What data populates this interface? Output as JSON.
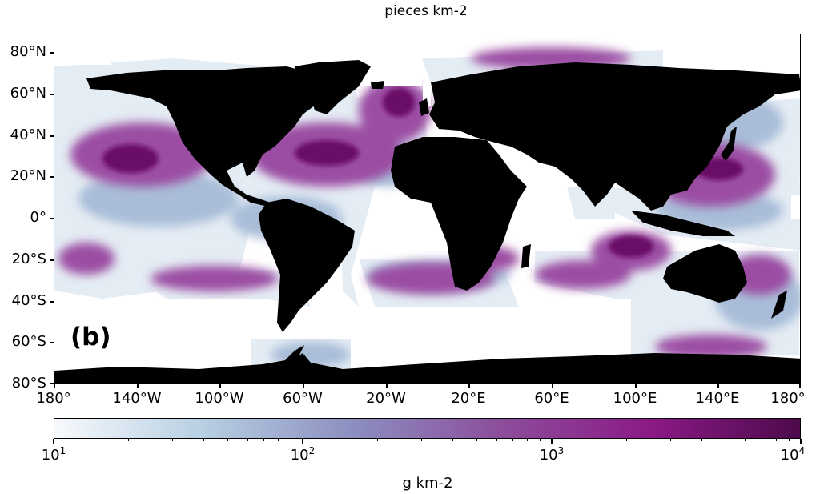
{
  "title": "pieces km-2",
  "panel_label": "(b)",
  "y_ticks": [
    "80°N",
    "60°N",
    "40°N",
    "20°N",
    "0°",
    "20°S",
    "40°S",
    "60°S",
    "80°S"
  ],
  "x_ticks": [
    "180°",
    "140°W",
    "100°W",
    "60°W",
    "20°W",
    "20°E",
    "60°E",
    "100°E",
    "140°E",
    "180°"
  ],
  "colorbar": {
    "title": "g km-2",
    "scale": "log",
    "range": [
      10,
      10000
    ],
    "labels": [
      {
        "base": "10",
        "exp": "1"
      },
      {
        "base": "10",
        "exp": "2"
      },
      {
        "base": "10",
        "exp": "3"
      },
      {
        "base": "10",
        "exp": "4"
      }
    ],
    "colors": [
      "#f7f9fc",
      "#b7cfe2",
      "#8c8fc0",
      "#8c4d9b",
      "#8b1a86",
      "#4d0a4b"
    ]
  },
  "map": {
    "land_color": "#000000",
    "ocean_no_data_color": "#ffffff"
  }
}
